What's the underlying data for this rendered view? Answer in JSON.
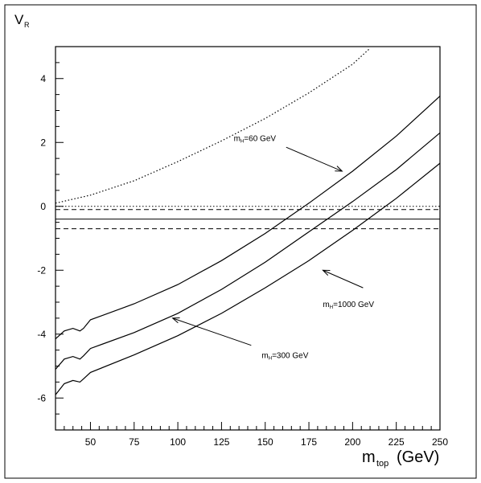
{
  "chart_data": {
    "type": "line",
    "title": "",
    "xlabel": "m",
    "xlabel_sub": "top",
    "xlabel_unit": "(GeV)",
    "ylabel": "V",
    "ylabel_sub": "R",
    "xlim": [
      30,
      250
    ],
    "ylim": [
      -7,
      5
    ],
    "grid": false,
    "x_ticks": [
      50,
      75,
      100,
      125,
      150,
      175,
      200,
      225,
      250
    ],
    "y_ticks": [
      4,
      2,
      0,
      -2,
      -4,
      -6
    ],
    "series": [
      {
        "style": "solid",
        "x": [
          30,
          35,
          40,
          44,
          46,
          50,
          75,
          100,
          125,
          150,
          175,
          200,
          225,
          250
        ],
        "y": [
          -4.15,
          -3.9,
          -3.82,
          -3.9,
          -3.82,
          -3.55,
          -3.05,
          -2.45,
          -1.7,
          -0.85,
          0.1,
          1.1,
          2.2,
          3.45
        ]
      },
      {
        "style": "solid",
        "x": [
          30,
          35,
          40,
          44,
          46,
          50,
          75,
          100,
          125,
          150,
          175,
          200,
          225,
          250
        ],
        "y": [
          -5.1,
          -4.78,
          -4.7,
          -4.78,
          -4.68,
          -4.45,
          -3.95,
          -3.35,
          -2.6,
          -1.75,
          -0.8,
          0.15,
          1.15,
          2.3
        ]
      },
      {
        "style": "solid",
        "x": [
          30,
          35,
          40,
          44,
          46,
          50,
          75,
          100,
          125,
          150,
          175,
          200,
          225,
          250
        ],
        "y": [
          -5.9,
          -5.55,
          -5.45,
          -5.5,
          -5.4,
          -5.2,
          -4.65,
          -4.05,
          -3.35,
          -2.55,
          -1.7,
          -0.75,
          0.25,
          1.35
        ]
      },
      {
        "style": "dotted",
        "x": [
          30,
          50,
          75,
          100,
          125,
          150,
          175,
          200,
          210
        ],
        "y": [
          0.1,
          0.35,
          0.8,
          1.4,
          2.05,
          2.75,
          3.55,
          4.45,
          4.95
        ]
      }
    ],
    "reference_lines": [
      {
        "style": "dotted",
        "y": 0.0
      },
      {
        "style": "dashed",
        "y": -0.1
      },
      {
        "style": "solid",
        "y": -0.4
      },
      {
        "style": "dashed",
        "y": -0.7
      }
    ],
    "annotations": [
      {
        "m": "m",
        "sub": "H",
        "rest": "=60 GeV",
        "tx": 132,
        "ty": 2.05,
        "ax": 162,
        "ay": 1.85,
        "hx": 194,
        "hy": 1.1
      },
      {
        "m": "m",
        "sub": "H",
        "rest": "=1000 GeV",
        "tx": 183,
        "ty": -3.15,
        "ax": 206,
        "ay": -2.55,
        "hx": 183,
        "hy": -2.0
      },
      {
        "m": "m",
        "sub": "H",
        "rest": "=300 GeV",
        "tx": 148,
        "ty": -4.75,
        "ax": 142,
        "ay": -4.35,
        "hx": 97,
        "hy": -3.5
      }
    ]
  }
}
